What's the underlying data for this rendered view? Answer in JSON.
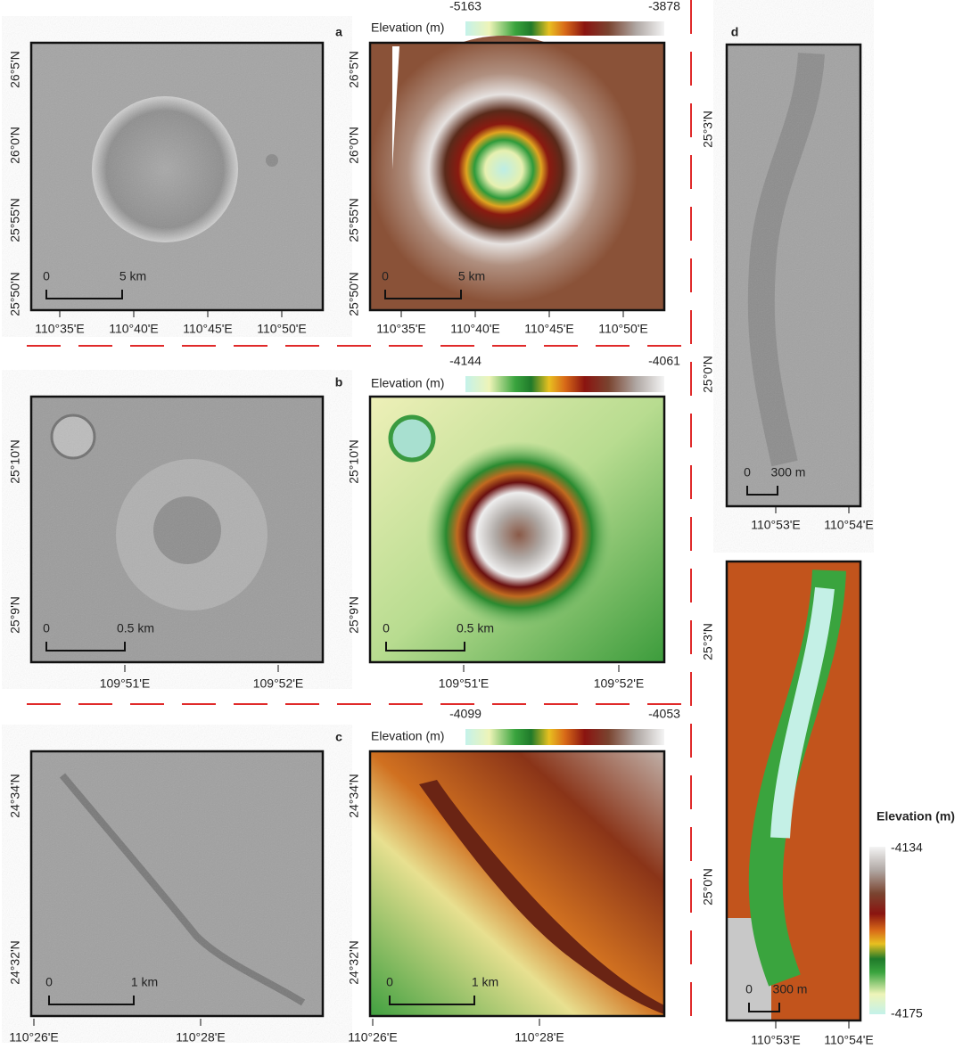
{
  "panels": [
    {
      "label": "a",
      "colorbar": {
        "title": "Elevation (m)",
        "min": -5163,
        "max": -3878
      },
      "lat_ticks": [
        "26°5'N",
        "26°0'N",
        "25°55'N",
        "25°50'N"
      ],
      "lon_ticks": [
        "110°35'E",
        "110°40'E",
        "110°45'E",
        "110°50'E"
      ],
      "scale_bar": {
        "start": 0,
        "end": "5 km"
      }
    },
    {
      "label": "b",
      "colorbar": {
        "title": "Elevation (m)",
        "min": -4144,
        "max": -4061
      },
      "lat_ticks": [
        "25°10'N",
        "25°9'N"
      ],
      "lon_ticks": [
        "109°51'E",
        "109°52'E"
      ],
      "scale_bar": {
        "start": 0,
        "end": "0.5 km"
      }
    },
    {
      "label": "c",
      "colorbar": {
        "title": "Elevation (m)",
        "min": -4099,
        "max": -4053
      },
      "lat_ticks": [
        "24°34'N",
        "24°32'N"
      ],
      "lon_ticks": [
        "110°26'E",
        "110°28'E"
      ],
      "scale_bar": {
        "start": 0,
        "end": "1 km"
      }
    },
    {
      "label": "d",
      "colorbar": {
        "title": "Elevation (m)",
        "min": -4175,
        "max": -4134
      },
      "lat_ticks": [
        "25°3'N",
        "25°0'N"
      ],
      "lon_ticks": [
        "110°53'E",
        "110°54'E"
      ],
      "scale_bar": {
        "start": 0,
        "end": "300 m"
      }
    }
  ]
}
